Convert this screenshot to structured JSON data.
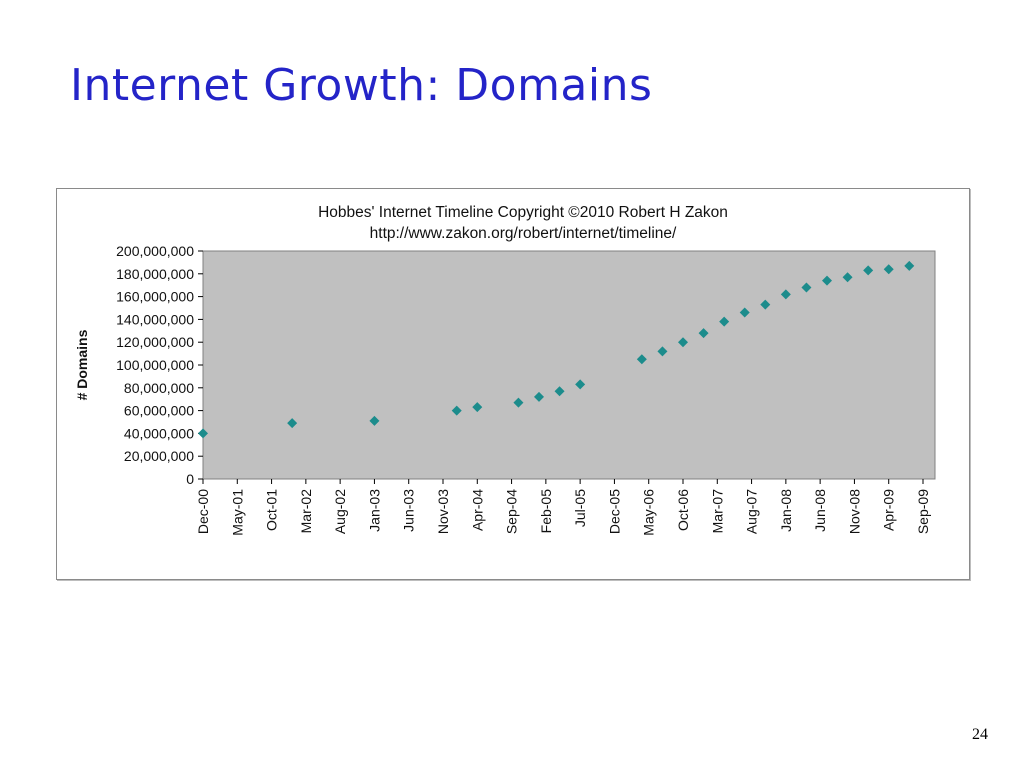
{
  "slide": {
    "title": "Internet Growth: Domains",
    "page_number": "24"
  },
  "colors": {
    "title": "#2424c8",
    "plot_background": "#c0c0c0",
    "marker": "#1c8c8c"
  },
  "chart_data": {
    "type": "scatter",
    "title": "Hobbes' Internet Timeline  Copyright ©2010 Robert H Zakon",
    "subtitle": "http://www.zakon.org/robert/internet/timeline/",
    "xlabel": "",
    "ylabel": "# Domains",
    "ylim": [
      0,
      200000000
    ],
    "yticks": [
      "0",
      "20,000,000",
      "40,000,000",
      "60,000,000",
      "80,000,000",
      "100,000,000",
      "120,000,000",
      "140,000,000",
      "160,000,000",
      "180,000,000",
      "200,000,000"
    ],
    "xticks": [
      "Dec-00",
      "May-01",
      "Oct-01",
      "Mar-02",
      "Aug-02",
      "Jan-03",
      "Jun-03",
      "Nov-03",
      "Apr-04",
      "Sep-04",
      "Feb-05",
      "Jul-05",
      "Dec-05",
      "May-06",
      "Oct-06",
      "Mar-07",
      "Aug-07",
      "Jan-08",
      "Jun-08",
      "Nov-08",
      "Apr-09",
      "Sep-09"
    ],
    "grid": false,
    "legend": "none",
    "marker": "diamond",
    "points": [
      {
        "x": "2000-12",
        "y": 40000000
      },
      {
        "x": "2002-01",
        "y": 49000000
      },
      {
        "x": "2003-01",
        "y": 51000000
      },
      {
        "x": "2004-01",
        "y": 60000000
      },
      {
        "x": "2004-04",
        "y": 63000000
      },
      {
        "x": "2004-10",
        "y": 67000000
      },
      {
        "x": "2005-01",
        "y": 72000000
      },
      {
        "x": "2005-04",
        "y": 77000000
      },
      {
        "x": "2005-07",
        "y": 83000000
      },
      {
        "x": "2006-04",
        "y": 105000000
      },
      {
        "x": "2006-07",
        "y": 112000000
      },
      {
        "x": "2006-10",
        "y": 120000000
      },
      {
        "x": "2007-01",
        "y": 128000000
      },
      {
        "x": "2007-04",
        "y": 138000000
      },
      {
        "x": "2007-07",
        "y": 146000000
      },
      {
        "x": "2007-10",
        "y": 153000000
      },
      {
        "x": "2008-01",
        "y": 162000000
      },
      {
        "x": "2008-04",
        "y": 168000000
      },
      {
        "x": "2008-07",
        "y": 174000000
      },
      {
        "x": "2008-10",
        "y": 177000000
      },
      {
        "x": "2009-01",
        "y": 183000000
      },
      {
        "x": "2009-04",
        "y": 184000000
      },
      {
        "x": "2009-07",
        "y": 187000000
      }
    ]
  }
}
